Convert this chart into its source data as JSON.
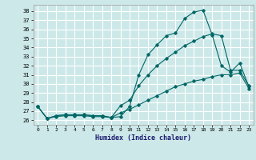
{
  "xlabel": "Humidex (Indice chaleur)",
  "background_color": "#cde8e8",
  "grid_color": "#ffffff",
  "line_color": "#006666",
  "xlim": [
    -0.5,
    23.5
  ],
  "ylim": [
    25.5,
    38.7
  ],
  "yticks": [
    26,
    27,
    28,
    29,
    30,
    31,
    32,
    33,
    34,
    35,
    36,
    37,
    38
  ],
  "xticks": [
    0,
    1,
    2,
    3,
    4,
    5,
    6,
    7,
    8,
    9,
    10,
    11,
    12,
    13,
    14,
    15,
    16,
    17,
    18,
    19,
    20,
    21,
    22,
    23
  ],
  "series1": [
    27.5,
    26.2,
    26.4,
    26.5,
    26.5,
    26.5,
    26.4,
    26.4,
    26.3,
    26.4,
    27.5,
    31.0,
    33.2,
    34.3,
    35.3,
    35.6,
    37.2,
    37.9,
    38.1,
    35.4,
    32.0,
    31.3,
    32.3,
    29.7
  ],
  "series2": [
    27.5,
    26.2,
    26.5,
    26.6,
    26.6,
    26.6,
    26.5,
    26.5,
    26.3,
    27.6,
    28.2,
    29.8,
    31.0,
    32.0,
    32.8,
    33.5,
    34.2,
    34.7,
    35.2,
    35.5,
    35.3,
    31.5,
    31.5,
    29.8
  ],
  "series3": [
    27.5,
    26.2,
    26.5,
    26.6,
    26.6,
    26.6,
    26.5,
    26.5,
    26.3,
    26.8,
    27.2,
    27.7,
    28.2,
    28.7,
    29.2,
    29.7,
    30.0,
    30.3,
    30.5,
    30.8,
    31.0,
    31.0,
    31.2,
    29.5
  ]
}
